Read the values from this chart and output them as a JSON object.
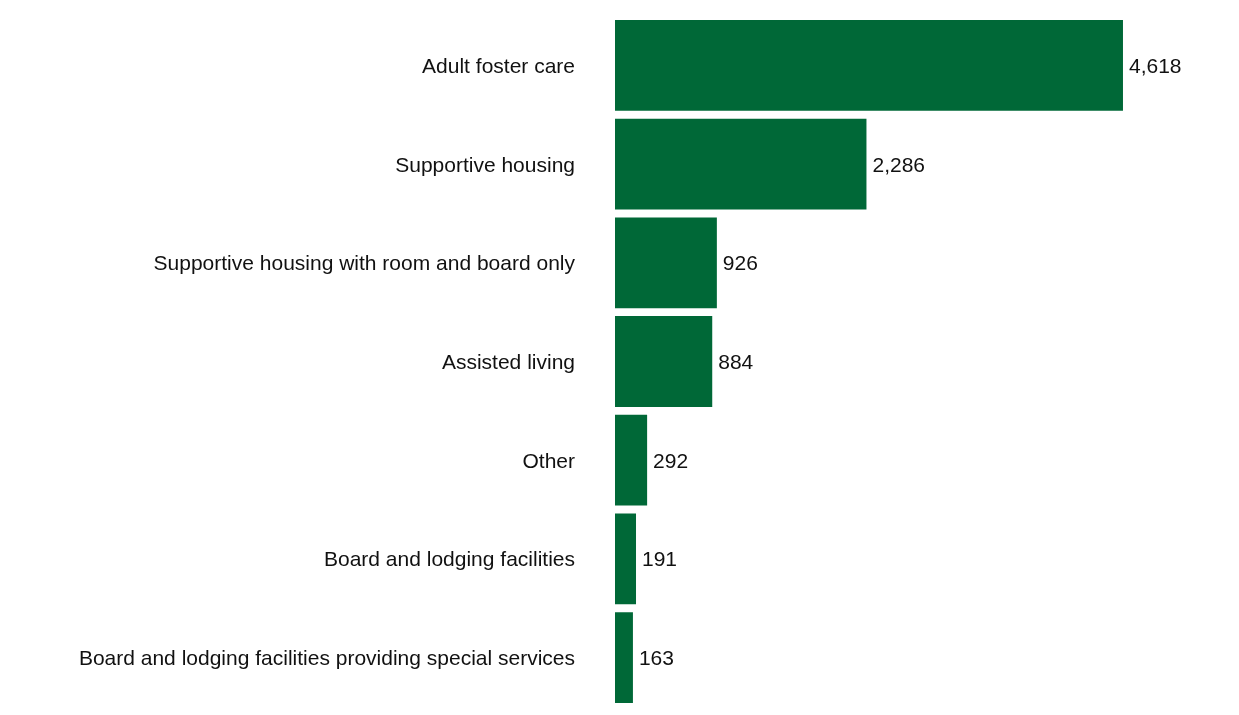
{
  "chart_data": {
    "type": "bar",
    "orientation": "horizontal",
    "categories": [
      "Adult foster care",
      "Supportive housing",
      "Supportive housing with room and board only",
      "Assisted living",
      "Other",
      "Board and lodging facilities",
      "Board and lodging facilities providing special services"
    ],
    "values": [
      4618,
      2286,
      926,
      884,
      292,
      191,
      163
    ],
    "value_labels": [
      "4,618",
      "2,286",
      "926",
      "884",
      "292",
      "191",
      "163"
    ],
    "color": "#006837"
  }
}
